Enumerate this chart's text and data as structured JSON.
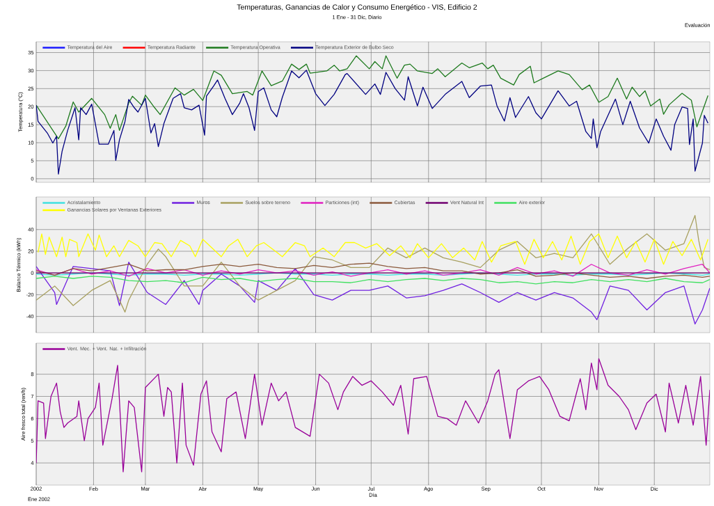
{
  "chart_data": [
    {
      "type": "line",
      "title": "Temperaturas, Ganancias de Calor y Consumo Energético - VIS, Edificio 2",
      "subtitle": "1 Ene - 31 Dic, Diario",
      "annotations": [
        "Evaluación"
      ],
      "ylabel": "Temperatura (°C)",
      "xlim": [
        "2002-01-01",
        "2002-12-31"
      ],
      "ylim": [
        -1,
        38
      ],
      "xticks": [
        {
          "value": "2002-01-01",
          "label": null
        },
        {
          "value": "2002-02-01",
          "label": null
        },
        {
          "value": "2002-03-01",
          "label": null
        },
        {
          "value": "2002-04-01",
          "label": null
        },
        {
          "value": "2002-05-01",
          "label": null
        },
        {
          "value": "2002-06-01",
          "label": null
        },
        {
          "value": "2002-07-01",
          "label": null
        },
        {
          "value": "2002-08-01",
          "label": null
        },
        {
          "value": "2002-09-01",
          "label": null
        },
        {
          "value": "2002-10-01",
          "label": null
        },
        {
          "value": "2002-11-01",
          "label": null
        },
        {
          "value": "2002-12-01",
          "label": null
        }
      ],
      "yticks": [
        0,
        5,
        10,
        15,
        20,
        25,
        30,
        35
      ],
      "tick_labels": "y",
      "grid": true,
      "legend": "top left",
      "x": [
        "2002-01-01",
        "2002-01-13",
        "2002-01-17",
        "2002-01-21",
        "2002-01-24",
        "2002-01-31",
        "2002-02-07",
        "2002-02-10",
        "2002-02-13",
        "2002-02-15",
        "2002-02-20",
        "2002-02-22",
        "2002-02-27",
        "2002-03-01",
        "2002-03-06",
        "2002-03-09",
        "2002-03-17",
        "2002-03-22",
        "2002-03-27",
        "2002-04-01",
        "2002-04-07",
        "2002-04-11",
        "2002-04-17",
        "2002-04-25",
        "2002-04-28",
        "2002-05-03",
        "2002-05-08",
        "2002-05-14",
        "2002-05-19",
        "2002-05-23",
        "2002-05-27",
        "2002-05-29",
        "2002-06-07",
        "2002-06-11",
        "2002-06-14",
        "2002-06-18",
        "2002-06-23",
        "2002-06-30",
        "2002-07-03",
        "2002-07-07",
        "2002-07-09",
        "2002-07-15",
        "2002-07-19",
        "2002-07-22",
        "2002-07-26",
        "2002-08-03",
        "2002-08-06",
        "2002-08-10",
        "2002-08-19",
        "2002-08-23",
        "2002-08-30",
        "2002-09-02",
        "2002-09-05",
        "2002-09-09",
        "2002-09-16",
        "2002-09-19",
        "2002-09-25",
        "2002-09-27",
        "2002-10-02",
        "2002-10-06",
        "2002-10-10",
        "2002-10-16",
        "2002-10-23",
        "2002-10-27",
        "2002-11-01",
        "2002-11-06",
        "2002-11-11",
        "2002-11-16",
        "2002-11-19",
        "2002-11-23",
        "2002-11-26",
        "2002-11-29",
        "2002-12-04",
        "2002-12-06",
        "2002-12-09",
        "2002-12-16",
        "2002-12-21",
        "2002-12-24",
        "2002-12-30"
      ],
      "series": [
        {
          "name": "Temperatura del Aire",
          "color": "#1a1aff",
          "values": [
            null,
            null,
            null,
            null,
            null,
            null,
            null,
            null,
            null,
            null,
            null,
            null,
            null,
            null,
            null,
            null,
            null,
            null,
            null,
            null,
            null,
            null,
            null,
            null,
            null,
            null,
            null,
            null,
            null,
            null,
            null,
            null,
            null,
            null,
            null,
            null,
            null,
            null,
            null,
            null,
            null,
            null,
            null,
            null,
            null,
            null,
            null,
            null,
            null,
            null,
            null,
            null,
            null,
            null,
            null,
            null,
            null,
            null,
            null,
            null,
            null,
            null,
            null,
            null,
            null,
            null,
            null,
            null,
            null,
            null,
            null,
            null,
            null,
            null,
            null,
            null,
            null,
            null,
            null
          ]
        },
        {
          "name": "Temperatura Radiante",
          "color": "#ff0000",
          "values": [
            null,
            null,
            null,
            null,
            null,
            null,
            null,
            null,
            null,
            null,
            null,
            null,
            null,
            null,
            null,
            null,
            null,
            null,
            null,
            null,
            null,
            null,
            null,
            null,
            null,
            null,
            null,
            null,
            null,
            null,
            null,
            null,
            null,
            null,
            null,
            null,
            null,
            null,
            null,
            null,
            null,
            null,
            null,
            null,
            null,
            null,
            null,
            null,
            null,
            null,
            null,
            null,
            null,
            null,
            null,
            null,
            null,
            null,
            null,
            null,
            null,
            null,
            null,
            null,
            null,
            null,
            null,
            null,
            null,
            null,
            null,
            null,
            null,
            null,
            null,
            null,
            null,
            null,
            null
          ]
        },
        {
          "name": "Temperatura Operativa",
          "color": "#1e7a1e",
          "values": [
            20.4,
            11.1,
            14.6,
            21.3,
            18.5,
            22.3,
            17.8,
            14,
            17.8,
            13.4,
            21,
            22.9,
            20.4,
            23.2,
            19.7,
            17.8,
            25.2,
            23.2,
            24.8,
            21.7,
            29.9,
            28.7,
            23.6,
            24.2,
            23.2,
            29.9,
            25.8,
            27.1,
            31.8,
            30.3,
            31.8,
            29.3,
            29.9,
            31.5,
            29.9,
            30.5,
            34.1,
            30.5,
            32.5,
            30.5,
            34.1,
            27.9,
            31.5,
            31.8,
            29.9,
            29.2,
            30.5,
            28.3,
            32.1,
            30.8,
            32.1,
            30.5,
            31.5,
            27.9,
            26,
            28.9,
            31.2,
            26.6,
            27.9,
            28.9,
            29.9,
            28.9,
            24.7,
            26,
            21.2,
            22.8,
            27.9,
            22.1,
            25.4,
            22.8,
            24.4,
            20.2,
            22.1,
            17.9,
            20.5,
            23.7,
            21.8,
            14.4,
            23.1
          ]
        },
        {
          "name": "Temperatura Exterior de Bulbo Seco",
          "color": "#000080",
          "x": [
            "2002-01-01",
            "2002-01-02",
            "2002-01-07",
            "2002-01-10",
            "2002-01-12",
            "2002-01-13",
            "2002-01-15",
            "2002-01-18",
            "2002-01-22",
            "2002-01-24",
            "2002-01-25",
            "2002-01-28",
            "2002-01-31",
            "2002-02-04",
            "2002-02-09",
            "2002-02-12",
            "2002-02-13",
            "2002-02-15",
            "2002-02-18",
            "2002-02-20",
            "2002-02-23",
            "2002-02-25",
            "2002-03-01",
            "2002-03-04",
            "2002-03-06",
            "2002-03-08",
            "2002-03-11",
            "2002-03-16",
            "2002-03-20",
            "2002-03-22",
            "2002-03-26",
            "2002-03-30",
            "2002-04-02",
            "2002-04-03",
            "2002-04-07",
            "2002-04-09",
            "2002-04-13",
            "2002-04-17",
            "2002-04-21",
            "2002-04-23",
            "2002-04-26",
            "2002-04-29",
            "2002-05-01",
            "2002-05-04",
            "2002-05-08",
            "2002-05-11",
            "2002-05-14",
            "2002-05-19",
            "2002-05-23",
            "2002-05-27",
            "2002-06-01",
            "2002-06-06",
            "2002-06-11",
            "2002-06-17",
            "2002-06-18",
            "2002-06-23",
            "2002-06-28",
            "2002-07-03",
            "2002-07-06",
            "2002-07-09",
            "2002-07-14",
            "2002-07-19",
            "2002-07-21",
            "2002-07-26",
            "2002-07-29",
            "2002-08-03",
            "2002-08-10",
            "2002-08-19",
            "2002-08-23",
            "2002-08-29",
            "2002-09-04",
            "2002-09-07",
            "2002-09-11",
            "2002-09-14",
            "2002-09-17",
            "2002-09-24",
            "2002-09-28",
            "2002-10-01",
            "2002-10-10",
            "2002-10-16",
            "2002-10-20",
            "2002-10-25",
            "2002-10-28",
            "2002-10-29",
            "2002-10-31",
            "2002-11-02",
            "2002-11-10",
            "2002-11-14",
            "2002-11-18",
            "2002-11-23",
            "2002-11-28",
            "2002-12-02",
            "2002-12-06",
            "2002-12-10",
            "2002-12-12",
            "2002-12-16",
            "2002-12-19",
            "2002-12-20",
            "2002-12-22",
            "2002-12-23",
            "2002-12-27",
            "2002-12-28",
            "2002-12-30"
          ],
          "values": [
            20.4,
            15.9,
            12.7,
            9.9,
            11.8,
            1.3,
            7.6,
            13.4,
            19.7,
            10.8,
            19.7,
            17.8,
            20.7,
            9.6,
            9.6,
            13.4,
            5.1,
            10.8,
            15.9,
            22,
            19.7,
            18.5,
            22.3,
            12.7,
            15.3,
            8.9,
            15.3,
            22.3,
            23.6,
            19.7,
            19.1,
            20.4,
            12.1,
            22.9,
            25.8,
            27.4,
            22.3,
            17.8,
            21,
            23.6,
            19.7,
            13.4,
            24.2,
            25.2,
            19.1,
            17.2,
            22.6,
            29.9,
            28,
            30.1,
            23.6,
            20.3,
            23.4,
            28.9,
            29.2,
            26.3,
            23.4,
            26.3,
            23.4,
            29.5,
            25,
            21.8,
            28.3,
            20.2,
            25.4,
            19.5,
            23.4,
            27,
            22.5,
            25.7,
            26,
            20.2,
            16,
            22.5,
            17,
            22.8,
            18.3,
            16.6,
            24.4,
            20.2,
            21.5,
            13.1,
            11.2,
            16.6,
            8.6,
            13.1,
            22.1,
            15,
            21.5,
            14.1,
            9.9,
            16.6,
            11.8,
            7.9,
            15,
            19.9,
            19.5,
            9.5,
            16.6,
            2.1,
            9.9,
            17.6,
            15.4
          ]
        }
      ]
    },
    {
      "type": "line",
      "ylabel": "Balance Térmico (kWh)",
      "xlim": [
        "2002-01-01",
        "2002-12-31"
      ],
      "ylim": [
        -55,
        70
      ],
      "xticks": [
        {
          "value": "2002-01-01",
          "label": null
        },
        {
          "value": "2002-02-01",
          "label": null
        },
        {
          "value": "2002-03-01",
          "label": null
        },
        {
          "value": "2002-04-01",
          "label": null
        },
        {
          "value": "2002-05-01",
          "label": null
        },
        {
          "value": "2002-06-01",
          "label": null
        },
        {
          "value": "2002-07-01",
          "label": null
        },
        {
          "value": "2002-08-01",
          "label": null
        },
        {
          "value": "2002-09-01",
          "label": null
        },
        {
          "value": "2002-10-01",
          "label": null
        },
        {
          "value": "2002-11-01",
          "label": null
        },
        {
          "value": "2002-12-01",
          "label": null
        }
      ],
      "yticks": [
        -40,
        -20,
        0,
        20,
        40
      ],
      "tick_labels": "y",
      "grid": true,
      "legend": "top left",
      "x": [
        "2002-01-01",
        "2002-01-11",
        "2002-01-21",
        "2002-01-31",
        "2002-02-10",
        "2002-02-20",
        "2002-03-02",
        "2002-03-12",
        "2002-03-22",
        "2002-04-01",
        "2002-04-11",
        "2002-04-21",
        "2002-05-01",
        "2002-05-11",
        "2002-05-21",
        "2002-05-31",
        "2002-06-10",
        "2002-06-20",
        "2002-06-30",
        "2002-07-10",
        "2002-07-20",
        "2002-07-30",
        "2002-08-09",
        "2002-08-19",
        "2002-08-29",
        "2002-09-08",
        "2002-09-18",
        "2002-09-28",
        "2002-10-08",
        "2002-10-18",
        "2002-10-28",
        "2002-11-07",
        "2002-11-17",
        "2002-11-27",
        "2002-12-07",
        "2002-12-17",
        "2002-12-27",
        "2002-12-31"
      ],
      "series": [
        {
          "name": "Acristalamiento",
          "color": "#40e0e0",
          "values": [
            -1,
            -2,
            -1,
            0,
            -1,
            -2,
            -1,
            -1,
            -2,
            -1,
            -1,
            -2,
            -1,
            0,
            -1,
            -1,
            -2,
            -1,
            -1,
            -2,
            -1,
            -1,
            -2,
            -1,
            0,
            -1,
            -2,
            -1,
            -1,
            -2,
            -1,
            -1,
            -2,
            -1,
            0,
            -1,
            -2,
            -1
          ]
        },
        {
          "name": "Muros",
          "color": "#7020e0",
          "x": [
            "2002-01-01",
            "2002-01-11",
            "2002-01-12",
            "2002-01-21",
            "2002-01-31",
            "2002-02-10",
            "2002-02-15",
            "2002-02-20",
            "2002-03-02",
            "2002-03-12",
            "2002-03-22",
            "2002-03-30",
            "2002-04-01",
            "2002-04-11",
            "2002-04-21",
            "2002-04-29",
            "2002-05-01",
            "2002-05-11",
            "2002-05-21",
            "2002-05-31",
            "2002-06-10",
            "2002-06-20",
            "2002-06-30",
            "2002-07-10",
            "2002-07-20",
            "2002-07-30",
            "2002-08-09",
            "2002-08-19",
            "2002-08-29",
            "2002-09-08",
            "2002-09-18",
            "2002-09-28",
            "2002-10-08",
            "2002-10-18",
            "2002-10-28",
            "2002-10-31",
            "2002-11-07",
            "2002-11-17",
            "2002-11-27",
            "2002-12-07",
            "2002-12-17",
            "2002-12-23",
            "2002-12-27",
            "2002-12-31"
          ],
          "values": [
            6,
            -18,
            -29,
            6,
            4,
            2,
            -30,
            10,
            -18,
            -29,
            -7,
            -29,
            -16,
            -1,
            -12,
            -27,
            -7,
            -16,
            4,
            -20,
            -25,
            -16,
            -16,
            -12,
            -23,
            -21,
            -16,
            -10,
            -18,
            -27,
            -18,
            -25,
            -18,
            -23,
            -36,
            -43,
            -12,
            -16,
            -34,
            -18,
            -12,
            -47,
            -34,
            -14
          ]
        },
        {
          "name": "Suelos sobre terreno",
          "color": "#a8a060",
          "x": [
            "2002-01-01",
            "2002-01-11",
            "2002-01-21",
            "2002-01-31",
            "2002-02-10",
            "2002-02-18",
            "2002-02-20",
            "2002-03-02",
            "2002-03-08",
            "2002-03-12",
            "2002-03-22",
            "2002-04-01",
            "2002-04-11",
            "2002-04-21",
            "2002-05-01",
            "2002-05-11",
            "2002-05-21",
            "2002-05-31",
            "2002-06-10",
            "2002-06-20",
            "2002-06-30",
            "2002-07-10",
            "2002-07-20",
            "2002-07-30",
            "2002-08-09",
            "2002-08-19",
            "2002-08-29",
            "2002-09-08",
            "2002-09-18",
            "2002-09-28",
            "2002-10-08",
            "2002-10-18",
            "2002-10-28",
            "2002-11-07",
            "2002-11-17",
            "2002-11-27",
            "2002-12-07",
            "2002-12-17",
            "2002-12-23",
            "2002-12-25",
            "2002-12-28",
            "2002-12-31"
          ],
          "values": [
            -25,
            -12,
            -30,
            -16,
            -7,
            -36,
            -25,
            8,
            22,
            15,
            -12,
            -12,
            10,
            -12,
            -25,
            -16,
            -7,
            15,
            12,
            5,
            5,
            23,
            14,
            23,
            14,
            10,
            5,
            21,
            29,
            14,
            18,
            14,
            36,
            8,
            23,
            36,
            21,
            27,
            53,
            30,
            5,
            3
          ]
        },
        {
          "name": "Particiones (int)",
          "color": "#e020c0",
          "values": [
            3,
            -2,
            4,
            -1,
            2,
            -3,
            4,
            0,
            3,
            -2,
            2,
            -1,
            3,
            0,
            2,
            -2,
            1,
            -3,
            0,
            3,
            -1,
            2,
            -2,
            0,
            3,
            -2,
            5,
            -1,
            2,
            -3,
            8,
            0,
            -2,
            3,
            -1,
            4,
            8,
            0
          ]
        },
        {
          "name": "Cubiertas",
          "color": "#8b5a3c",
          "values": [
            2,
            -2,
            4,
            2,
            5,
            8,
            2,
            3,
            3,
            6,
            8,
            6,
            8,
            5,
            4,
            7,
            5,
            8,
            9,
            6,
            4,
            5,
            2,
            2,
            -1,
            0,
            3,
            -3,
            -2,
            0,
            -2,
            -4,
            -3,
            -5,
            -3,
            -2,
            -4,
            -3
          ]
        },
        {
          "name": "Vent Natural Int",
          "color": "#700070",
          "values": [
            0,
            0,
            0,
            0,
            0,
            0,
            0,
            0,
            0,
            0,
            0,
            0,
            0,
            0,
            0,
            0,
            0,
            0,
            0,
            0,
            0,
            0,
            0,
            0,
            0,
            0,
            0,
            0,
            0,
            0,
            0,
            0,
            0,
            0,
            0,
            0,
            0,
            0
          ]
        },
        {
          "name": "Aire exterior",
          "color": "#40e060",
          "values": [
            -5,
            -3,
            -5,
            -3,
            -4,
            -7,
            -8,
            -7,
            -9,
            -4,
            -6,
            -5,
            -8,
            -6,
            -5,
            -8,
            -8,
            -9,
            -6,
            -8,
            -6,
            -5,
            -7,
            -5,
            -6,
            -9,
            -8,
            -10,
            -8,
            -9,
            -6,
            -8,
            -6,
            -8,
            -5,
            -8,
            -9,
            -6
          ]
        },
        {
          "name": "Ganancias Solares por Ventanas Exteriores",
          "color": "#ffff00",
          "x": [
            "2002-01-02",
            "2002-01-04",
            "2002-01-06",
            "2002-01-08",
            "2002-01-12",
            "2002-01-15",
            "2002-01-17",
            "2002-01-19",
            "2002-01-23",
            "2002-01-24",
            "2002-01-29",
            "2002-02-02",
            "2002-02-04",
            "2002-02-08",
            "2002-02-12",
            "2002-02-15",
            "2002-02-20",
            "2002-02-25",
            "2002-03-01",
            "2002-03-06",
            "2002-03-10",
            "2002-03-15",
            "2002-03-20",
            "2002-03-25",
            "2002-03-28",
            "2002-04-01",
            "2002-04-06",
            "2002-04-11",
            "2002-04-15",
            "2002-04-20",
            "2002-04-25",
            "2002-04-30",
            "2002-05-04",
            "2002-05-11",
            "2002-05-14",
            "2002-05-21",
            "2002-05-26",
            "2002-05-29",
            "2002-06-05",
            "2002-06-11",
            "2002-06-17",
            "2002-06-22",
            "2002-06-28",
            "2002-07-04",
            "2002-07-11",
            "2002-07-17",
            "2002-07-22",
            "2002-07-26",
            "2002-08-01",
            "2002-08-08",
            "2002-08-14",
            "2002-08-20",
            "2002-08-26",
            "2002-08-30",
            "2002-09-04",
            "2002-09-09",
            "2002-09-17",
            "2002-09-22",
            "2002-09-27",
            "2002-10-02",
            "2002-10-07",
            "2002-10-12",
            "2002-10-17",
            "2002-10-22",
            "2002-10-27",
            "2002-11-01",
            "2002-11-06",
            "2002-11-11",
            "2002-11-16",
            "2002-11-21",
            "2002-11-26",
            "2002-12-01",
            "2002-12-06",
            "2002-12-11",
            "2002-12-16",
            "2002-12-21",
            "2002-12-26",
            "2002-12-30"
          ],
          "values": [
            19,
            36,
            17,
            33,
            15,
            33,
            15,
            31,
            28,
            15,
            36,
            21,
            35,
            15,
            25,
            15,
            30,
            25,
            15,
            28,
            27,
            15,
            30,
            25,
            15,
            31,
            23,
            15,
            25,
            31,
            15,
            25,
            28,
            19,
            15,
            28,
            25,
            15,
            23,
            15,
            28,
            28,
            23,
            27,
            16,
            25,
            14,
            27,
            14,
            27,
            14,
            23,
            12,
            29,
            10,
            25,
            29,
            8,
            31,
            14,
            29,
            12,
            34,
            8,
            29,
            36,
            14,
            34,
            14,
            29,
            10,
            31,
            8,
            29,
            16,
            31,
            12,
            31
          ]
        }
      ]
    },
    {
      "type": "line",
      "xlabel": "Día",
      "ylabel": "Aire fresco total (ren/h)",
      "annotations": [
        "Ene 2002"
      ],
      "xlim": [
        "2002-01-01",
        "2002-12-31"
      ],
      "ylim": [
        3,
        9.4
      ],
      "xticks": [
        {
          "value": "2002-01-01",
          "label": "2002"
        },
        {
          "value": "2002-02-01",
          "label": "Feb"
        },
        {
          "value": "2002-03-01",
          "label": "Mar"
        },
        {
          "value": "2002-04-01",
          "label": "Abr"
        },
        {
          "value": "2002-05-01",
          "label": "May"
        },
        {
          "value": "2002-06-01",
          "label": "Jun"
        },
        {
          "value": "2002-07-01",
          "label": "Jul"
        },
        {
          "value": "2002-08-01",
          "label": "Ago"
        },
        {
          "value": "2002-09-01",
          "label": "Sep"
        },
        {
          "value": "2002-10-01",
          "label": "Oct"
        },
        {
          "value": "2002-11-01",
          "label": "Nov"
        },
        {
          "value": "2002-12-01",
          "label": "Dic"
        }
      ],
      "yticks": [
        4,
        5,
        6,
        7,
        8
      ],
      "grid": true,
      "legend": "top left",
      "x": [
        "2002-01-01",
        "2002-01-02",
        "2002-01-05",
        "2002-01-06",
        "2002-01-09",
        "2002-01-12",
        "2002-01-14",
        "2002-01-16",
        "2002-01-18",
        "2002-01-23",
        "2002-01-24",
        "2002-01-27",
        "2002-01-29",
        "2002-02-02",
        "2002-02-04",
        "2002-02-06",
        "2002-02-11",
        "2002-02-14",
        "2002-02-17",
        "2002-02-20",
        "2002-02-23",
        "2002-02-27",
        "2002-03-01",
        "2002-03-08",
        "2002-03-11",
        "2002-03-13",
        "2002-03-15",
        "2002-03-18",
        "2002-03-21",
        "2002-03-23",
        "2002-03-27",
        "2002-03-31",
        "2002-04-03",
        "2002-04-06",
        "2002-04-11",
        "2002-04-14",
        "2002-04-19",
        "2002-04-24",
        "2002-04-29",
        "2002-05-03",
        "2002-05-08",
        "2002-05-12",
        "2002-05-16",
        "2002-05-21",
        "2002-05-29",
        "2002-06-03",
        "2002-06-08",
        "2002-06-13",
        "2002-06-16",
        "2002-06-21",
        "2002-06-26",
        "2002-07-01",
        "2002-07-07",
        "2002-07-13",
        "2002-07-17",
        "2002-07-21",
        "2002-07-24",
        "2002-07-31",
        "2002-08-06",
        "2002-08-11",
        "2002-08-16",
        "2002-08-21",
        "2002-08-28",
        "2002-09-02",
        "2002-09-06",
        "2002-09-08",
        "2002-09-14",
        "2002-09-18",
        "2002-09-24",
        "2002-09-30",
        "2002-10-05",
        "2002-10-11",
        "2002-10-16",
        "2002-10-22",
        "2002-10-25",
        "2002-10-28",
        "2002-10-31",
        "2002-11-01",
        "2002-11-06",
        "2002-11-12",
        "2002-11-17",
        "2002-11-21",
        "2002-11-27",
        "2002-12-02",
        "2002-12-07",
        "2002-12-09",
        "2002-12-14",
        "2002-12-18",
        "2002-12-22",
        "2002-12-26",
        "2002-12-29",
        "2002-12-31"
      ],
      "series": [
        {
          "name": "Vent. Mec. + Vent. Nat. + Infiltración",
          "color": "#990099",
          "values": [
            4.0,
            6.8,
            6.7,
            5.1,
            7.0,
            7.6,
            6.3,
            5.6,
            5.8,
            6.1,
            6.8,
            5.0,
            6.0,
            6.5,
            7.6,
            4.8,
            6.9,
            8.4,
            3.6,
            6.8,
            6.5,
            3.6,
            7.4,
            8.0,
            6.1,
            7.4,
            7.2,
            4.0,
            7.6,
            4.8,
            3.9,
            7.1,
            7.7,
            5.4,
            4.5,
            6.9,
            7.2,
            5.1,
            8.0,
            5.7,
            7.6,
            6.8,
            7.2,
            5.6,
            5.2,
            8.0,
            7.6,
            6.4,
            7.2,
            7.9,
            7.5,
            7.7,
            7.2,
            6.6,
            7.5,
            5.3,
            7.8,
            7.9,
            6.1,
            6.0,
            5.7,
            6.8,
            5.8,
            6.8,
            8.0,
            8.2,
            5.1,
            7.3,
            7.7,
            7.9,
            7.3,
            6.1,
            5.9,
            7.8,
            6.4,
            8.5,
            7.3,
            8.7,
            7.5,
            7.0,
            6.4,
            5.5,
            6.7,
            7.1,
            5.4,
            7.6,
            5.8,
            7.5,
            5.7,
            7.9,
            4.8,
            7.3
          ]
        }
      ]
    }
  ]
}
